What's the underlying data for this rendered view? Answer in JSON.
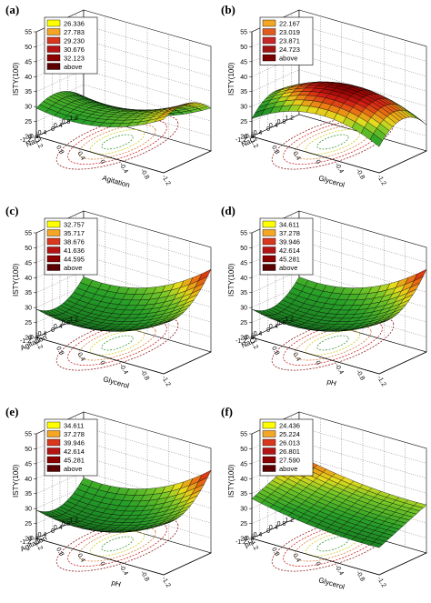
{
  "chart_data": [
    {
      "panel": "(a)",
      "type": "surface3d",
      "ylabel": "ISTY(100)",
      "xlabel": "Agitation",
      "zlabel": "NaCl",
      "zaxis_ticks": [
        "55",
        "50",
        "45",
        "40",
        "35",
        "30",
        "25",
        "20"
      ],
      "x_ticks": [
        "1.2",
        "0.8",
        "0.4",
        "0",
        "-0.4",
        "-0.8",
        "-1.2"
      ],
      "y_ticks": [
        "1.2",
        "0.8",
        "0.4",
        "0",
        "-0.4",
        "-0.8",
        "-1.2"
      ],
      "legend": [
        "26.336",
        "27.783",
        "29.230",
        "30.676",
        "32.123",
        "above"
      ],
      "legend_colors": [
        "#ffff00",
        "#f5a623",
        "#d9381e",
        "#b41414",
        "#8c0000",
        "#5a0000"
      ],
      "surface": "saddle"
    },
    {
      "panel": "(b)",
      "type": "surface3d",
      "ylabel": "ISTY(100)",
      "xlabel": "Glycerol",
      "zlabel": "NaCl",
      "zaxis_ticks": [
        "55",
        "50",
        "45",
        "40",
        "35",
        "30",
        "25",
        "20"
      ],
      "x_ticks": [
        "1.2",
        "0.8",
        "0.4",
        "0",
        "-0.4",
        "-0.8",
        "-1.2"
      ],
      "y_ticks": [
        "1.2",
        "0.8",
        "0.4",
        "0",
        "-0.4",
        "-0.8",
        "-1.2"
      ],
      "legend": [
        "22.167",
        "23.019",
        "23.871",
        "24.723",
        "above"
      ],
      "legend_colors": [
        "#f5a623",
        "#e05a1e",
        "#c82828",
        "#a01414",
        "#7a0000"
      ],
      "surface": "dome"
    },
    {
      "panel": "(c)",
      "type": "surface3d",
      "ylabel": "ISTY(100)",
      "xlabel": "Glycerol",
      "zlabel": "Agitation",
      "zaxis_ticks": [
        "55",
        "50",
        "45",
        "40",
        "35",
        "30",
        "25",
        "20"
      ],
      "x_ticks": [
        "1.2",
        "0.8",
        "0.4",
        "0",
        "-0.4",
        "-0.8",
        "-1.2"
      ],
      "y_ticks": [
        "1.2",
        "0.8",
        "0.4",
        "0",
        "-0.4",
        "-0.8",
        "-1.2"
      ],
      "legend": [
        "32.757",
        "35.717",
        "38.676",
        "41.636",
        "44.595",
        "above"
      ],
      "legend_colors": [
        "#ffff00",
        "#f5a623",
        "#d9381e",
        "#b41414",
        "#8c0000",
        "#5a0000"
      ],
      "surface": "bowl"
    },
    {
      "panel": "(d)",
      "type": "surface3d",
      "ylabel": "ISTY(100)",
      "xlabel": "pH",
      "zlabel": "NaCl",
      "zaxis_ticks": [
        "55",
        "50",
        "45",
        "40",
        "35",
        "30",
        "25",
        "20"
      ],
      "x_ticks": [
        "1.2",
        "0.8",
        "0.4",
        "0",
        "-0.4",
        "-0.8",
        "-1.2"
      ],
      "y_ticks": [
        "1.2",
        "0.8",
        "0.4",
        "0",
        "-0.4",
        "-0.8",
        "-1.2"
      ],
      "legend": [
        "34.611",
        "37.278",
        "39.946",
        "42.614",
        "45.281",
        "above"
      ],
      "legend_colors": [
        "#ffff00",
        "#f5a623",
        "#d9381e",
        "#b41414",
        "#8c0000",
        "#5a0000"
      ],
      "surface": "bowl"
    },
    {
      "panel": "(e)",
      "type": "surface3d",
      "ylabel": "ISTY(100)",
      "xlabel": "pH",
      "zlabel": "Agitation",
      "zaxis_ticks": [
        "55",
        "50",
        "45",
        "40",
        "35",
        "30",
        "25",
        "20"
      ],
      "x_ticks": [
        "1.2",
        "0.8",
        "0.4",
        "0",
        "-0.4",
        "-0.8",
        "-1.2"
      ],
      "y_ticks": [
        "1.2",
        "0.8",
        "0.4",
        "0",
        "-0.4",
        "-0.8",
        "-1.2"
      ],
      "legend": [
        "34.611",
        "37.278",
        "39.946",
        "42.614",
        "45.281",
        "above"
      ],
      "legend_colors": [
        "#ffff00",
        "#f5a623",
        "#d9381e",
        "#b41414",
        "#8c0000",
        "#5a0000"
      ],
      "surface": "bowl"
    },
    {
      "panel": "(f)",
      "type": "surface3d",
      "ylabel": "ISTY(100)",
      "xlabel": "Glycerol",
      "zlabel": "pH",
      "zaxis_ticks": [
        "55",
        "50",
        "45",
        "40",
        "35",
        "30",
        "25",
        "20"
      ],
      "x_ticks": [
        "1.2",
        "0.8",
        "0.4",
        "0",
        "-0.4",
        "-0.8",
        "-1.2"
      ],
      "y_ticks": [
        "1.2",
        "0.8",
        "0.4",
        "0",
        "-0.4",
        "-0.8",
        "-1.2"
      ],
      "legend": [
        "24.436",
        "25.224",
        "26.013",
        "26.801",
        "27.590",
        "above"
      ],
      "legend_colors": [
        "#ffff00",
        "#f5a623",
        "#d9381e",
        "#b41414",
        "#8c0000",
        "#5a0000"
      ],
      "surface": "tilt"
    }
  ]
}
